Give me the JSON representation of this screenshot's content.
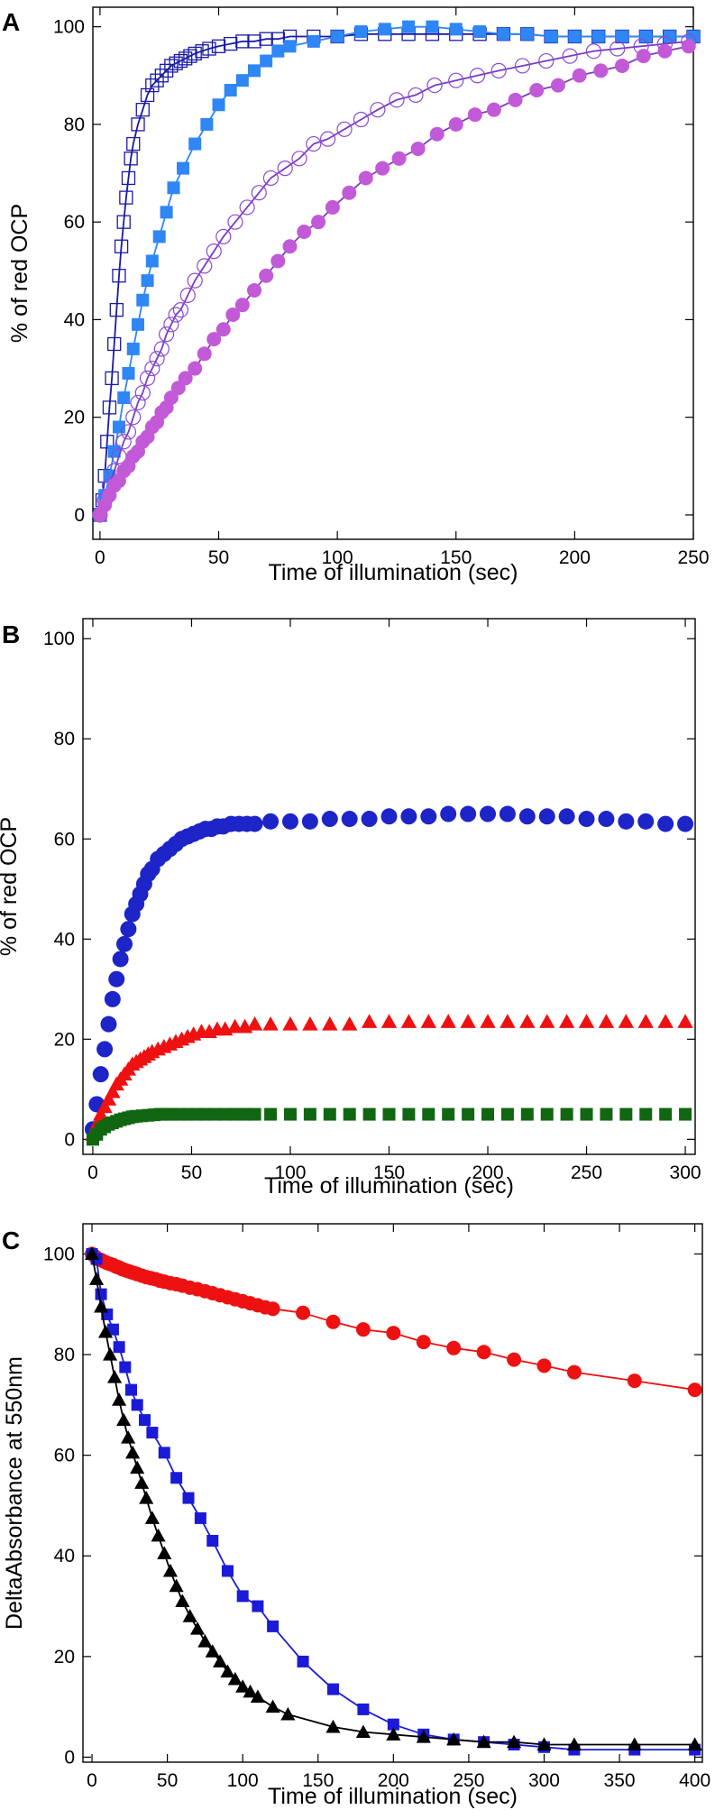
{
  "colors": {
    "navy": "#1a1aa6",
    "azure": "#2f86f5",
    "violet_line": "#7a3bc4",
    "violet_open": "#8a4ad0",
    "magenta": "#c25ad8",
    "blue": "#1d24c8",
    "red": "#ee1111",
    "green": "#116611",
    "blue_c": "#1a1ad8",
    "black": "#000000"
  },
  "chart_data": [
    {
      "panel_label": "A",
      "type": "scatter",
      "xlabel": "Time of illumination (sec)",
      "ylabel": "% of red OCP",
      "xlim": [
        -3,
        250
      ],
      "ylim": [
        -5,
        104
      ],
      "x_ticks": [
        0,
        50,
        100,
        150,
        200,
        250
      ],
      "y_ticks": [
        0,
        20,
        40,
        60,
        80,
        100
      ],
      "grid": false,
      "series": [
        {
          "marker": "open-square",
          "color": "navy",
          "fit_curve": true,
          "x": [
            0,
            1,
            2,
            3,
            4,
            5,
            6,
            7,
            8,
            9,
            10,
            11,
            12,
            13,
            14,
            16,
            18,
            20,
            22,
            24,
            26,
            28,
            30,
            32,
            34,
            36,
            38,
            40,
            43,
            46,
            50,
            55,
            60,
            65,
            70,
            75,
            80,
            90,
            100,
            110,
            120,
            130,
            140,
            150,
            160,
            170,
            180,
            190,
            200,
            210,
            220,
            230,
            240,
            250
          ],
          "y": [
            0,
            3,
            8,
            15,
            22,
            28,
            35,
            42,
            49,
            55,
            60,
            65,
            69,
            73,
            76,
            80,
            83,
            86,
            88,
            89,
            90,
            91,
            92,
            92.5,
            93,
            93.5,
            94,
            94.5,
            95,
            95.5,
            96,
            96.5,
            97,
            97,
            97.5,
            97.5,
            98,
            98,
            98,
            98.5,
            98.5,
            98.5,
            98.5,
            98.5,
            98.5,
            98.5,
            98.5,
            98,
            98,
            98,
            98,
            98,
            98,
            98
          ]
        },
        {
          "marker": "filled-square",
          "color": "azure",
          "fit_curve": true,
          "x": [
            0,
            2,
            4,
            6,
            8,
            10,
            12,
            14,
            16,
            18,
            20,
            22,
            25,
            28,
            31,
            35,
            40,
            45,
            50,
            55,
            60,
            65,
            70,
            75,
            80,
            90,
            100,
            110,
            120,
            130,
            140,
            150,
            160,
            170,
            180,
            190,
            200,
            210,
            220,
            230,
            240,
            250
          ],
          "y": [
            0,
            4,
            8,
            13,
            18,
            24,
            29,
            34,
            39,
            44,
            48,
            52,
            57,
            62,
            67,
            71,
            76,
            80,
            84,
            87,
            89,
            91,
            93,
            95,
            96,
            97,
            98,
            99,
            99.5,
            100,
            100,
            99.5,
            99,
            98.5,
            98.5,
            98,
            98,
            98,
            98,
            98,
            98,
            98
          ]
        },
        {
          "marker": "open-circle",
          "color": "violet_open",
          "fit_curve": true,
          "x": [
            0,
            2,
            4,
            6,
            8,
            10,
            12,
            14,
            16,
            18,
            20,
            22,
            24,
            26,
            28,
            30,
            32,
            34,
            37,
            40,
            44,
            48,
            52,
            57,
            62,
            67,
            72,
            78,
            84,
            90,
            96,
            103,
            110,
            117,
            125,
            133,
            141,
            150,
            159,
            168,
            178,
            188,
            198,
            208,
            218,
            228,
            238,
            248
          ],
          "y": [
            0,
            3,
            6,
            9,
            12,
            15,
            17,
            20,
            23,
            25,
            28,
            30,
            32,
            34,
            37,
            39,
            41,
            42,
            45,
            48,
            51,
            54,
            57,
            60,
            63,
            66,
            69,
            71,
            73,
            76,
            77,
            79,
            81,
            83,
            85,
            86,
            88,
            89,
            90,
            91,
            92,
            93,
            94,
            95,
            95.5,
            96,
            96.5,
            97
          ]
        },
        {
          "marker": "filled-circle",
          "color": "magenta",
          "fit_curve": true,
          "x": [
            0,
            2,
            4,
            6,
            8,
            10,
            12,
            14,
            16,
            18,
            20,
            22,
            24,
            26,
            28,
            30,
            33,
            36,
            40,
            44,
            48,
            52,
            56,
            60,
            65,
            70,
            75,
            80,
            86,
            92,
            98,
            105,
            112,
            119,
            126,
            134,
            142,
            150,
            158,
            166,
            175,
            184,
            193,
            202,
            211,
            220,
            229,
            238,
            248
          ],
          "y": [
            0,
            2,
            4,
            6,
            7,
            9,
            10,
            12,
            13,
            15,
            16,
            18,
            19,
            21,
            22,
            24,
            26,
            28,
            30,
            33,
            36,
            38,
            41,
            43,
            46,
            49,
            52,
            55,
            58,
            60,
            63,
            66,
            69,
            71,
            73,
            75,
            78,
            80,
            82,
            83,
            85,
            87,
            88,
            90,
            91,
            92,
            94,
            95,
            96
          ]
        }
      ]
    },
    {
      "panel_label": "B",
      "type": "scatter",
      "xlabel": "Time of illumination (sec)",
      "ylabel": "% of red OCP",
      "xlim": [
        -5,
        305
      ],
      "ylim": [
        -3,
        104
      ],
      "x_ticks": [
        0,
        50,
        100,
        150,
        200,
        250,
        300
      ],
      "y_ticks": [
        0,
        20,
        40,
        60,
        80,
        100
      ],
      "grid": false,
      "series": [
        {
          "marker": "filled-circle",
          "color": "blue",
          "fit_curve": false,
          "x": [
            0,
            2,
            4,
            6,
            8,
            10,
            12,
            14,
            16,
            18,
            20,
            22,
            24,
            26,
            28,
            30,
            33,
            36,
            39,
            42,
            45,
            48,
            51,
            54,
            57,
            60,
            63,
            66,
            70,
            74,
            78,
            82,
            90,
            100,
            110,
            120,
            130,
            140,
            150,
            160,
            170,
            180,
            190,
            200,
            210,
            220,
            230,
            240,
            250,
            260,
            270,
            280,
            290,
            300
          ],
          "y": [
            2,
            7,
            13,
            18,
            23,
            28,
            32,
            36,
            39,
            42,
            45,
            47,
            49,
            51,
            53,
            54,
            56,
            57,
            58,
            59,
            60,
            60.5,
            61,
            61.5,
            62,
            62,
            62.5,
            62.5,
            63,
            63,
            63,
            63,
            63.5,
            63.5,
            63.5,
            64,
            64,
            64,
            64.5,
            64.5,
            64.5,
            65,
            65,
            65,
            65,
            64.5,
            64.5,
            64.5,
            64,
            64,
            63.5,
            63.5,
            63,
            63
          ]
        },
        {
          "marker": "filled-triangle",
          "color": "red",
          "fit_curve": false,
          "x": [
            0,
            2,
            4,
            6,
            8,
            10,
            12,
            14,
            16,
            18,
            20,
            22,
            24,
            26,
            28,
            30,
            33,
            36,
            39,
            42,
            45,
            48,
            51,
            55,
            59,
            63,
            67,
            72,
            77,
            82,
            90,
            100,
            110,
            120,
            130,
            140,
            150,
            160,
            170,
            180,
            190,
            200,
            210,
            220,
            230,
            240,
            250,
            260,
            270,
            280,
            290,
            300
          ],
          "y": [
            1,
            3,
            5,
            6.5,
            8,
            9.5,
            11,
            12,
            13,
            14,
            15,
            15.5,
            16,
            16.5,
            17,
            17.5,
            18,
            18.5,
            19,
            19.5,
            20,
            20.5,
            21,
            21.5,
            21.5,
            22,
            22,
            22.5,
            22.5,
            23,
            23,
            23,
            23,
            23,
            23,
            23.5,
            23.5,
            23.5,
            23.5,
            23.5,
            23.5,
            23.5,
            23.5,
            23.5,
            23.5,
            23.5,
            23.5,
            23.5,
            23.5,
            23.5,
            23.5,
            23.5
          ]
        },
        {
          "marker": "filled-square",
          "color": "green",
          "fit_curve": false,
          "x": [
            0,
            2,
            4,
            6,
            8,
            10,
            12,
            14,
            16,
            18,
            20,
            22,
            25,
            28,
            31,
            34,
            37,
            40,
            44,
            48,
            52,
            57,
            62,
            67,
            72,
            77,
            82,
            90,
            100,
            110,
            120,
            130,
            140,
            150,
            160,
            170,
            180,
            190,
            200,
            210,
            220,
            230,
            240,
            250,
            260,
            270,
            280,
            290,
            300
          ],
          "y": [
            0,
            1,
            2,
            2.5,
            3,
            3.3,
            3.6,
            3.9,
            4.1,
            4.3,
            4.5,
            4.6,
            4.7,
            4.8,
            4.9,
            5,
            5,
            5,
            5,
            5,
            5,
            5,
            5,
            5,
            5,
            5,
            5,
            5,
            5,
            5,
            5,
            5,
            5,
            5,
            5,
            5,
            5,
            5,
            5,
            5,
            5,
            5,
            5,
            5,
            5,
            5,
            5,
            5,
            5
          ]
        }
      ]
    },
    {
      "panel_label": "C",
      "type": "line",
      "xlabel": "Time of illumination (sec)",
      "ylabel": "DeltaAbsorbance at 550nm",
      "xlim": [
        -6,
        405
      ],
      "ylim": [
        -1,
        106
      ],
      "x_ticks": [
        0,
        50,
        100,
        150,
        200,
        250,
        300,
        350,
        400
      ],
      "y_ticks": [
        0,
        20,
        40,
        60,
        80,
        100
      ],
      "grid": false,
      "series": [
        {
          "marker": "filled-circle",
          "color": "red",
          "fit_curve": false,
          "x": [
            0,
            2,
            4,
            6,
            8,
            10,
            12,
            14,
            16,
            18,
            20,
            22,
            24,
            26,
            28,
            30,
            33,
            36,
            39,
            42,
            45,
            48,
            52,
            56,
            60,
            65,
            70,
            75,
            80,
            85,
            90,
            95,
            100,
            105,
            110,
            115,
            120,
            140,
            160,
            180,
            200,
            220,
            240,
            260,
            280,
            300,
            320,
            360,
            400
          ],
          "y": [
            100,
            99.5,
            99,
            98.8,
            98.5,
            98.2,
            98,
            97.8,
            97.5,
            97.3,
            97,
            96.8,
            96.6,
            96.4,
            96.2,
            96,
            95.7,
            95.4,
            95.2,
            95,
            94.7,
            94.5,
            94.2,
            94,
            93.7,
            93.3,
            93,
            92.6,
            92.2,
            91.8,
            91.4,
            91,
            90.6,
            90.2,
            89.8,
            89.4,
            89.1,
            88.3,
            86.5,
            85,
            84.3,
            82.5,
            81.3,
            80.5,
            79,
            77.8,
            76.5,
            74.8,
            73
          ]
        },
        {
          "marker": "filled-square",
          "color": "blue_c",
          "fit_curve": false,
          "x": [
            0,
            3,
            6,
            10,
            14,
            18,
            22,
            26,
            30,
            35,
            40,
            48,
            56,
            64,
            72,
            80,
            90,
            100,
            110,
            120,
            140,
            160,
            180,
            200,
            220,
            240,
            260,
            280,
            300,
            320,
            360,
            400
          ],
          "y": [
            100,
            99,
            92,
            88,
            85,
            81.5,
            77.5,
            73,
            70,
            67,
            64.5,
            60.5,
            55.5,
            51.5,
            47.5,
            43,
            37,
            32,
            30,
            26,
            19,
            13.5,
            9.5,
            6.5,
            4.5,
            3.5,
            3,
            2.5,
            2,
            1.5,
            1.5,
            1.5
          ]
        },
        {
          "marker": "filled-triangle",
          "color": "black",
          "fit_curve": false,
          "x": [
            0,
            3,
            6,
            9,
            12,
            15,
            18,
            21,
            24,
            27,
            30,
            33,
            36,
            40,
            44,
            48,
            52,
            56,
            60,
            65,
            70,
            75,
            80,
            85,
            90,
            95,
            100,
            105,
            110,
            120,
            130,
            160,
            180,
            200,
            220,
            240,
            260,
            280,
            300,
            320,
            360,
            400
          ],
          "y": [
            100,
            95,
            89.5,
            84.5,
            80,
            75.5,
            71,
            67,
            63.5,
            60.5,
            57.5,
            54.5,
            51.5,
            47.5,
            44,
            40.5,
            37,
            34,
            31,
            28,
            25.5,
            23,
            21,
            19,
            17,
            15.5,
            14,
            13,
            12,
            10,
            8.5,
            6,
            5,
            4.5,
            4,
            3.5,
            3,
            3,
            2.5,
            2.5,
            2.5,
            2.5
          ]
        }
      ]
    }
  ]
}
